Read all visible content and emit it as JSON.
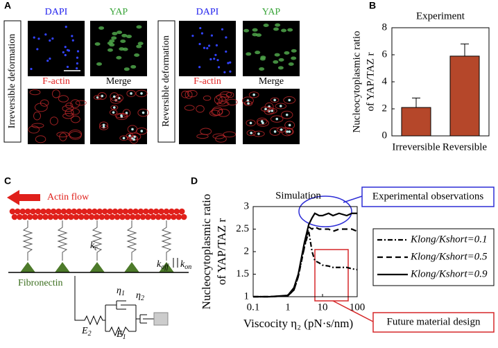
{
  "panel_labels": [
    "A",
    "B",
    "C",
    "D"
  ],
  "panel_a": {
    "left": {
      "condition": "Irreversible deformation",
      "labels": [
        "DAPI",
        "YAP",
        "F-actin",
        "Merge"
      ]
    },
    "right": {
      "condition": "Reversible deformation",
      "labels": [
        "DAPI",
        "YAP",
        "F-actin",
        "Merge"
      ]
    }
  },
  "panel_c": {
    "actin_flow": "Actin flow",
    "fibronectin": "Fibronectin",
    "symbols": [
      "kc",
      "koff",
      "kon",
      "η1",
      "η2",
      "E2",
      "E1"
    ]
  },
  "chart_data": [
    {
      "type": "bar",
      "title": "Experiment",
      "ylabel": [
        "Nucleocytoplasmic ratio",
        "of YAP/TAZ r"
      ],
      "categories": [
        "Irreversible",
        "Reversible"
      ],
      "values": [
        2.1,
        5.9
      ],
      "errors": [
        0.7,
        0.9
      ],
      "color": "#b5472a",
      "ylim": [
        0,
        8
      ],
      "yticks": [
        0,
        2,
        4,
        6,
        8
      ]
    },
    {
      "type": "line",
      "title": "Simulation",
      "ylabel": [
        "Nucleocytoplasmic ratio",
        "of YAP/TAZ r"
      ],
      "xlabel": "Viscocity η₂ (pN·s/nm)",
      "xlog": true,
      "x": [
        0.1,
        0.3,
        1,
        1.5,
        2,
        3,
        4,
        5,
        6,
        8,
        10,
        15,
        20,
        30,
        50,
        70,
        100
      ],
      "series": [
        {
          "name": "Klong/Kshort=0.1",
          "color": "#000000",
          "dash": "dashdot",
          "values": [
            1,
            1,
            1.02,
            1.15,
            1.45,
            2.1,
            2.45,
            2.0,
            1.8,
            1.75,
            1.7,
            1.68,
            1.65,
            1.65,
            1.65,
            1.62,
            1.6
          ]
        },
        {
          "name": "Klong/Kshort=0.5",
          "color": "#000000",
          "dash": "dash",
          "values": [
            1,
            1,
            1.02,
            1.15,
            1.45,
            2.1,
            2.55,
            2.5,
            2.55,
            2.5,
            2.5,
            2.5,
            2.45,
            2.5,
            2.5,
            2.5,
            2.45
          ]
        },
        {
          "name": "Klong/Kshort=0.9",
          "color": "#000000",
          "dash": "solid",
          "values": [
            1,
            1,
            1.03,
            1.2,
            1.5,
            2.2,
            2.6,
            2.75,
            2.85,
            2.8,
            2.8,
            2.85,
            2.8,
            2.85,
            2.8,
            2.85,
            2.85
          ]
        }
      ],
      "xlim": [
        0.1,
        100
      ],
      "xticks": [
        0.1,
        1,
        10,
        100
      ],
      "ylim": [
        1,
        3
      ],
      "yticks": [
        1,
        1.5,
        2,
        2.5,
        3
      ],
      "annotations": [
        "Experimental observations",
        "Future material design"
      ]
    }
  ]
}
